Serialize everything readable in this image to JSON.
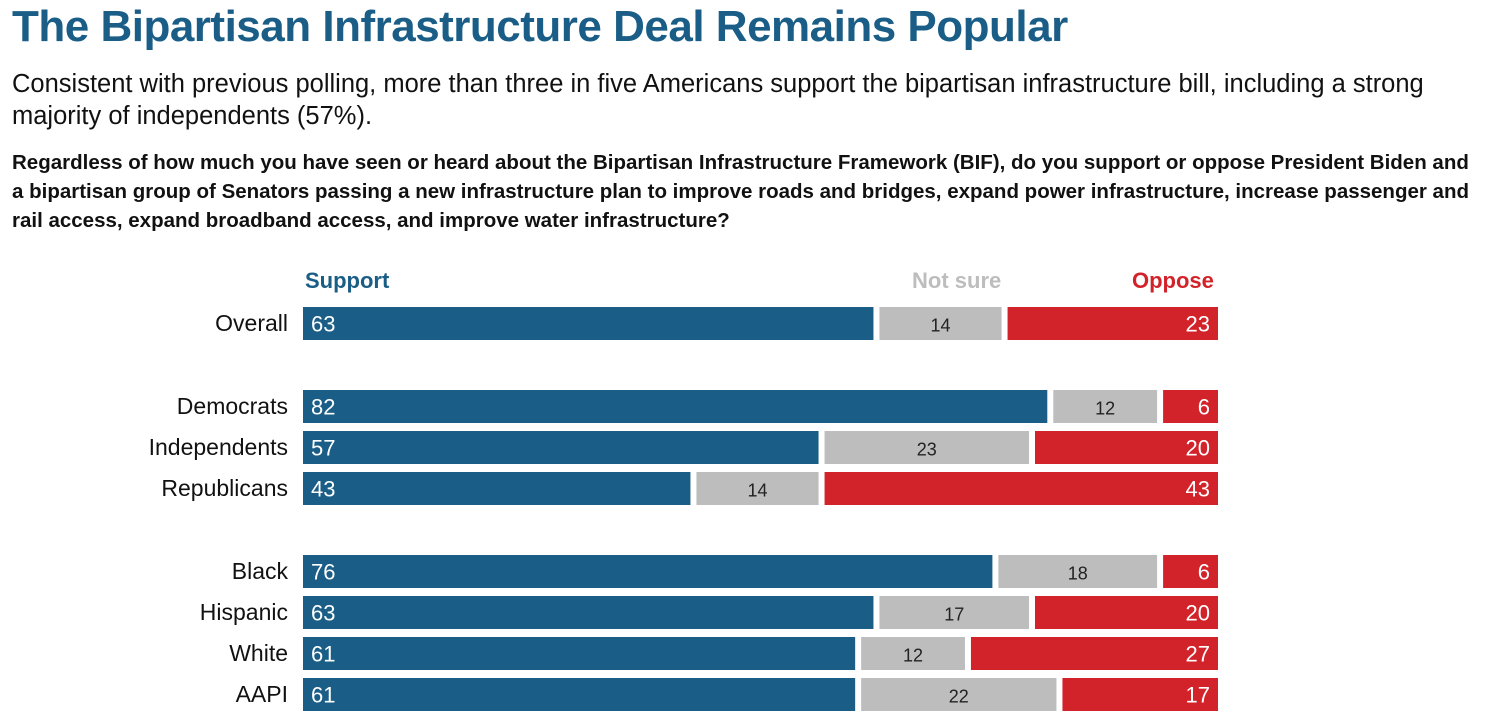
{
  "title": "The Bipartisan Infrastructure Deal Remains Popular",
  "subtitle": "Consistent with previous polling, more than three in five Americans support the bipartisan infrastructure bill, including a strong majority of independents (57%).",
  "question": "Regardless of how much you have seen or heard about the Bipartisan Infrastructure Framework (BIF), do you support or oppose President Biden and a bipartisan group of Senators passing a new infrastructure plan to improve roads and bridges, expand power infrastructure, increase passenger and rail access, expand broadband access, and improve water infrastructure?",
  "colors": {
    "support": "#1a5e87",
    "not_sure": "#bdbdbd",
    "oppose": "#d2232a",
    "title": "#1a5e87"
  },
  "chart_data": {
    "type": "bar",
    "orientation": "horizontal",
    "stacked": true,
    "xlim": [
      0,
      100
    ],
    "legend": [
      "Support",
      "Not sure",
      "Oppose"
    ],
    "categories": [
      "Overall",
      "Democrats",
      "Independents",
      "Republicans",
      "Black",
      "Hispanic",
      "White",
      "AAPI"
    ],
    "groups": [
      [
        "Overall"
      ],
      [
        "Democrats",
        "Independents",
        "Republicans"
      ],
      [
        "Black",
        "Hispanic",
        "White",
        "AAPI"
      ]
    ],
    "series": [
      {
        "name": "Support",
        "values": [
          63,
          82,
          57,
          43,
          76,
          63,
          61,
          61
        ]
      },
      {
        "name": "Not sure",
        "values": [
          14,
          12,
          23,
          14,
          18,
          17,
          12,
          22
        ]
      },
      {
        "name": "Oppose",
        "values": [
          23,
          6,
          20,
          43,
          6,
          20,
          27,
          17
        ]
      }
    ]
  }
}
